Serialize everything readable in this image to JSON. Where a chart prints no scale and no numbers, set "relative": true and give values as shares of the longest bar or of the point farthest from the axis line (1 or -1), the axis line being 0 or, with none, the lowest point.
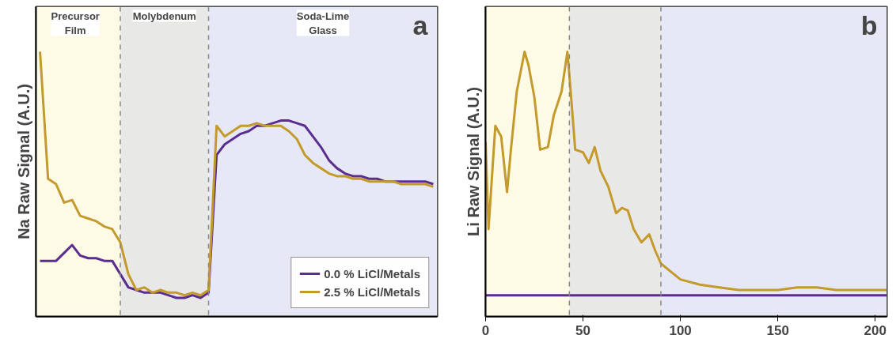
{
  "chart_data": [
    {
      "type": "line",
      "relative": true,
      "ylabel": "Na Raw Signal (A.U.)",
      "annotations": [
        "Precursor Film",
        "Molybdenum",
        "Soda-Lime Glass",
        "a"
      ],
      "legend": "bottom right",
      "tick_labels": false,
      "grid": false,
      "categories": [
        null,
        null,
        null,
        null,
        null,
        null,
        null,
        null,
        null,
        null,
        null,
        null,
        null,
        null,
        null,
        null,
        null,
        null,
        null,
        null,
        null,
        null,
        null,
        null,
        null,
        null,
        null,
        null,
        null,
        null,
        null,
        null,
        null,
        null,
        null,
        null,
        null,
        null,
        null,
        null,
        null,
        null,
        null,
        null,
        null,
        null,
        null,
        null,
        null,
        null
      ],
      "series": [
        {
          "name": "0.0 % LiCl/Metals",
          "color": "#5b2d8e",
          "values": [
            0.21,
            0.21,
            0.21,
            0.24,
            0.27,
            0.23,
            0.22,
            0.22,
            0.21,
            0.21,
            0.16,
            0.11,
            0.1,
            0.09,
            0.09,
            0.09,
            0.08,
            0.07,
            0.07,
            0.08,
            0.07,
            0.09,
            0.61,
            0.65,
            0.67,
            0.69,
            0.7,
            0.72,
            0.72,
            0.73,
            0.74,
            0.74,
            0.73,
            0.72,
            0.68,
            0.64,
            0.59,
            0.56,
            0.54,
            0.53,
            0.53,
            0.52,
            0.52,
            0.51,
            0.51,
            0.51,
            0.51,
            0.51,
            0.51,
            0.5
          ]
        },
        {
          "name": "2.5 % LiCl/Metals",
          "color": "#c49a2c",
          "values": [
            1.0,
            0.52,
            0.5,
            0.43,
            0.44,
            0.38,
            0.37,
            0.36,
            0.34,
            0.33,
            0.28,
            0.16,
            0.1,
            0.11,
            0.09,
            0.1,
            0.09,
            0.09,
            0.08,
            0.09,
            0.08,
            0.1,
            0.72,
            0.68,
            0.7,
            0.72,
            0.72,
            0.73,
            0.72,
            0.72,
            0.72,
            0.7,
            0.67,
            0.61,
            0.58,
            0.56,
            0.54,
            0.53,
            0.53,
            0.52,
            0.52,
            0.51,
            0.51,
            0.51,
            0.51,
            0.5,
            0.5,
            0.5,
            0.5,
            0.49
          ]
        }
      ]
    },
    {
      "type": "line",
      "relative": true,
      "ylabel": "Li Raw Signal (A.U.)",
      "annotations": [
        "b"
      ],
      "tick_labels": "x",
      "grid": false,
      "xlim": [
        0,
        206
      ],
      "xticks": [
        0,
        50,
        100,
        150,
        200
      ],
      "series": [
        {
          "color": "#5b2d8e",
          "x": [
            0,
            20,
            40,
            60,
            80,
            100,
            120,
            140,
            160,
            180,
            200,
            206
          ],
          "values": [
            0.08,
            0.08,
            0.08,
            0.08,
            0.08,
            0.08,
            0.08,
            0.08,
            0.08,
            0.08,
            0.08,
            0.08
          ]
        },
        {
          "color": "#c49a2c",
          "x": [
            0,
            1.5,
            5,
            8,
            11,
            13,
            16,
            20,
            22,
            25,
            28,
            32,
            35,
            39,
            42,
            44,
            46,
            50,
            53,
            56,
            59,
            63,
            67,
            70,
            73,
            76,
            80,
            84,
            87,
            90,
            95,
            100,
            110,
            120,
            130,
            140,
            150,
            160,
            170,
            180,
            190,
            200,
            206
          ],
          "values": [
            0.66,
            0.33,
            0.72,
            0.68,
            0.47,
            0.63,
            0.85,
            1.0,
            0.95,
            0.83,
            0.63,
            0.64,
            0.76,
            0.85,
            1.0,
            0.82,
            0.63,
            0.62,
            0.58,
            0.64,
            0.55,
            0.49,
            0.39,
            0.41,
            0.4,
            0.33,
            0.28,
            0.31,
            0.25,
            0.2,
            0.17,
            0.14,
            0.12,
            0.11,
            0.1,
            0.1,
            0.1,
            0.11,
            0.11,
            0.1,
            0.1,
            0.1,
            0.1
          ]
        }
      ],
      "bands": [
        {
          "axis": "x",
          "from": 0,
          "to": 43,
          "color": "#fdfbe6"
        },
        {
          "axis": "x",
          "from": 43,
          "to": 90,
          "color": "#e8e8e6"
        },
        {
          "axis": "x",
          "from": 90,
          "to": 206,
          "color": "#e6e9f5"
        }
      ],
      "ref_lines": [
        {
          "axis": "x",
          "value": 43,
          "color": "#888888",
          "line_style": "dashed"
        },
        {
          "axis": "x",
          "value": 90,
          "color": "#888888",
          "line_style": "dashed"
        }
      ]
    }
  ]
}
